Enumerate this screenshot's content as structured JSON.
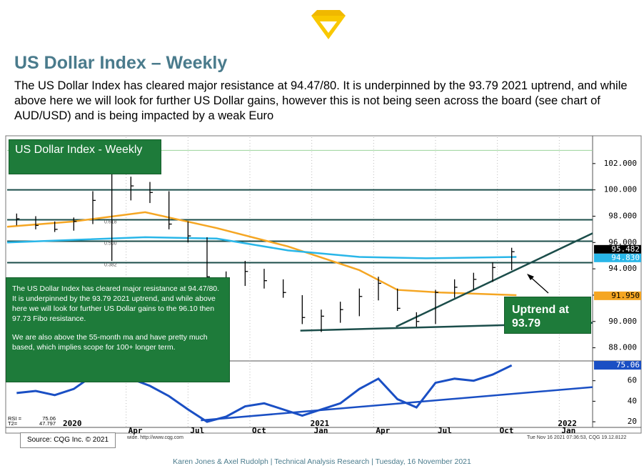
{
  "header": {
    "title": "US Dollar Index – Weekly",
    "body": "The US Dollar Index has cleared major resistance at 94.47/80. It is underpinned by the 93.79 2021 uptrend, and while above here we will look for further US Dollar gains, however this is not being seen across the board (see chart of AUD/USD) and is being impacted by a weak Euro"
  },
  "chart_data": [
    {
      "type": "ohlc",
      "title": "US Dollar Index - Weekly",
      "color": "#000000",
      "x": [
        -10,
        -6,
        -2,
        2,
        6,
        10,
        14,
        18,
        22,
        26,
        30,
        34,
        38,
        42,
        46,
        50,
        54,
        58,
        62,
        66,
        70,
        74,
        78,
        82,
        86,
        90,
        94
      ],
      "high": [
        98.2,
        98.0,
        97.6,
        97.9,
        99.9,
        102.9,
        101.0,
        100.6,
        99.9,
        97.6,
        96.4,
        93.8,
        94.6,
        94.0,
        93.2,
        92.0,
        90.9,
        91.5,
        92.5,
        93.4,
        92.5,
        90.7,
        92.4,
        93.2,
        93.7,
        94.5,
        95.6
      ],
      "low": [
        97.3,
        97.0,
        96.8,
        96.9,
        97.4,
        94.6,
        99.2,
        99.0,
        97.0,
        96.0,
        92.8,
        92.4,
        92.7,
        92.5,
        91.8,
        89.8,
        89.2,
        89.9,
        90.4,
        91.6,
        90.8,
        89.6,
        89.8,
        91.8,
        92.4,
        93.0,
        93.9
      ],
      "close": [
        97.8,
        97.3,
        97.0,
        97.6,
        99.2,
        102.0,
        100.3,
        99.8,
        97.4,
        96.5,
        93.4,
        92.9,
        93.8,
        93.1,
        92.2,
        90.3,
        90.4,
        90.9,
        91.9,
        92.9,
        91.0,
        90.0,
        92.2,
        92.6,
        93.2,
        94.1,
        95.3
      ],
      "xlim": [
        -12,
        111
      ],
      "ylim": [
        87,
        104
      ],
      "yticks": [
        {
          "value": 88,
          "label": "88.000"
        },
        {
          "value": 90,
          "label": "90.000"
        },
        {
          "value": 92,
          "label": "92.000"
        },
        {
          "value": 94,
          "label": "94.000"
        },
        {
          "value": 96,
          "label": "96.000"
        },
        {
          "value": 98,
          "label": "98.000"
        },
        {
          "value": 100,
          "label": "100.000"
        },
        {
          "value": 102,
          "label": "102.000"
        }
      ],
      "xticks": [
        {
          "value": 13,
          "label": "Apr"
        },
        {
          "value": 26,
          "label": "Jul"
        },
        {
          "value": 39,
          "label": "Oct"
        },
        {
          "value": 52,
          "label": "Jan"
        },
        {
          "value": 65,
          "label": "Apr"
        },
        {
          "value": 78,
          "label": "Jul"
        },
        {
          "value": 91,
          "label": "Oct"
        },
        {
          "value": 104,
          "label": "Jan"
        }
      ],
      "year_ticks": [
        {
          "value": 0,
          "label": "2020"
        },
        {
          "value": 52,
          "label": "2021"
        },
        {
          "value": 104,
          "label": "2022"
        }
      ],
      "grid": true,
      "moving_averages": [
        {
          "color": "#f5a623",
          "x": [
            -12,
            2,
            17,
            32,
            47,
            62,
            70,
            79,
            95
          ],
          "values": [
            97.2,
            97.6,
            98.3,
            97.1,
            95.7,
            93.9,
            92.4,
            92.2,
            92.0
          ]
        },
        {
          "color": "#29b6e8",
          "x": [
            -12,
            2,
            17,
            32,
            47,
            62,
            76,
            95
          ],
          "values": [
            96.0,
            96.2,
            96.4,
            96.3,
            95.4,
            94.9,
            94.8,
            94.9
          ]
        }
      ],
      "levels": [
        {
          "value": 103,
          "color": "#9ad39a"
        },
        {
          "value": 100,
          "color": "#1b4d4a"
        },
        {
          "value": 97.73,
          "label": "0.618",
          "color": "#1b4d4a"
        },
        {
          "value": 96.1,
          "label": "0.500",
          "color": "#1b4d4a"
        },
        {
          "value": 94.47,
          "label": "0.382",
          "color": "#1b4d4a"
        }
      ],
      "trendlines": [
        {
          "color": "#1b4d4a",
          "x": [
            49.6,
            111
          ],
          "values": [
            89.3,
            89.9
          ]
        },
        {
          "color": "#1b4d4a",
          "x": [
            69.7,
            111
          ],
          "values": [
            89.6,
            96.7
          ]
        }
      ],
      "price_tags": [
        {
          "value": 95.482,
          "label": "95.482",
          "color": "#000000"
        },
        {
          "value": 94.83,
          "label": "94.830",
          "color": "#29b6e8"
        },
        {
          "value": 91.95,
          "label": "91.950",
          "color": "#f5a623"
        }
      ]
    },
    {
      "type": "line",
      "color": "#1a4fc4",
      "x": [
        -10,
        -6,
        -2,
        2,
        6,
        10,
        14,
        18,
        22,
        26,
        30,
        34,
        38,
        42,
        46,
        50,
        54,
        58,
        62,
        66,
        70,
        74,
        78,
        82,
        86,
        90,
        94
      ],
      "values": [
        48,
        50,
        46,
        52,
        65,
        75,
        62,
        55,
        45,
        32,
        20,
        25,
        35,
        38,
        32,
        26,
        32,
        38,
        52,
        62,
        42,
        34,
        58,
        62,
        60,
        66,
        75
      ],
      "xlim": [
        -12,
        111
      ],
      "ylim": [
        14.5,
        78.6
      ],
      "yticks": [
        20,
        40,
        60
      ],
      "trendlines": [
        {
          "color": "#1a4fc4",
          "x": [
            28.7,
            111
          ],
          "values": [
            21.4,
            53.8
          ]
        }
      ],
      "price_tags": [
        {
          "value": 75.06,
          "label": "75.06",
          "color": "#1a4fc4"
        }
      ],
      "readouts": [
        {
          "label": "RSI =",
          "value": 75.06
        },
        {
          "label": "T2=",
          "value": 47.797
        }
      ]
    }
  ],
  "comments": {
    "main": "The US Dollar Index has cleared major resistance at 94.47/80. It is underpinned by the 93.79 2021 uptrend, and while above here we will look for further US Dollar gains to the 96.10 then 97.73 Fibo resistance.",
    "second": "We are also above the 55-month ma and have pretty much based, which implies scope for 100+ longer term.",
    "uptrend_line1": "Uptrend at",
    "uptrend_line2": "93.79"
  },
  "chart_footer": {
    "source": "Source: CQG Inc. © 2021",
    "url": "wide. http://www.cqg.com",
    "stamp": "Tue Nov 16 2021 07:36:53, CQG 19.12.8122"
  },
  "footer": "Karen Jones & Axel Rudolph  |  Technical Analysis Research  |  Tuesday, 16 November 2021"
}
